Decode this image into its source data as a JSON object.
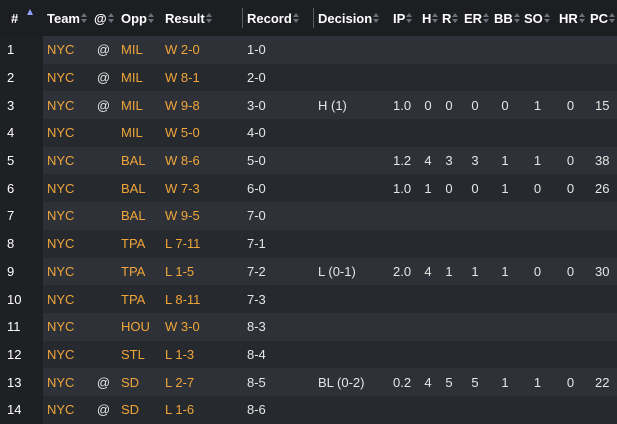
{
  "columns": [
    {
      "key": "idx",
      "label": "#"
    },
    {
      "key": "team",
      "label": "Team"
    },
    {
      "key": "at",
      "label": "@"
    },
    {
      "key": "opp",
      "label": "Opp"
    },
    {
      "key": "result",
      "label": "Result"
    },
    {
      "key": "record",
      "label": "Record"
    },
    {
      "key": "decision",
      "label": "Decision"
    },
    {
      "key": "ip",
      "label": "IP"
    },
    {
      "key": "h",
      "label": "H"
    },
    {
      "key": "r",
      "label": "R"
    },
    {
      "key": "er",
      "label": "ER"
    },
    {
      "key": "bb",
      "label": "BB"
    },
    {
      "key": "so",
      "label": "SO"
    },
    {
      "key": "hr",
      "label": "HR"
    },
    {
      "key": "pc",
      "label": "PC"
    }
  ],
  "rows": [
    {
      "idx": "1",
      "team": "NYC",
      "at": "@",
      "opp": "MIL",
      "result": "W 2-0",
      "record": "1-0",
      "decision": "",
      "ip": "",
      "h": "",
      "r": "",
      "er": "",
      "bb": "",
      "so": "",
      "hr": "",
      "pc": ""
    },
    {
      "idx": "2",
      "team": "NYC",
      "at": "@",
      "opp": "MIL",
      "result": "W 8-1",
      "record": "2-0",
      "decision": "",
      "ip": "",
      "h": "",
      "r": "",
      "er": "",
      "bb": "",
      "so": "",
      "hr": "",
      "pc": ""
    },
    {
      "idx": "3",
      "team": "NYC",
      "at": "@",
      "opp": "MIL",
      "result": "W 9-8",
      "record": "3-0",
      "decision": "H (1)",
      "ip": "1.0",
      "h": "0",
      "r": "0",
      "er": "0",
      "bb": "0",
      "so": "1",
      "hr": "0",
      "pc": "15"
    },
    {
      "idx": "4",
      "team": "NYC",
      "at": "",
      "opp": "MIL",
      "result": "W 5-0",
      "record": "4-0",
      "decision": "",
      "ip": "",
      "h": "",
      "r": "",
      "er": "",
      "bb": "",
      "so": "",
      "hr": "",
      "pc": ""
    },
    {
      "idx": "5",
      "team": "NYC",
      "at": "",
      "opp": "BAL",
      "result": "W 8-6",
      "record": "5-0",
      "decision": "",
      "ip": "1.2",
      "h": "4",
      "r": "3",
      "er": "3",
      "bb": "1",
      "so": "1",
      "hr": "0",
      "pc": "38"
    },
    {
      "idx": "6",
      "team": "NYC",
      "at": "",
      "opp": "BAL",
      "result": "W 7-3",
      "record": "6-0",
      "decision": "",
      "ip": "1.0",
      "h": "1",
      "r": "0",
      "er": "0",
      "bb": "1",
      "so": "0",
      "hr": "0",
      "pc": "26"
    },
    {
      "idx": "7",
      "team": "NYC",
      "at": "",
      "opp": "BAL",
      "result": "W 9-5",
      "record": "7-0",
      "decision": "",
      "ip": "",
      "h": "",
      "r": "",
      "er": "",
      "bb": "",
      "so": "",
      "hr": "",
      "pc": ""
    },
    {
      "idx": "8",
      "team": "NYC",
      "at": "",
      "opp": "TPA",
      "result": "L 7-11",
      "record": "7-1",
      "decision": "",
      "ip": "",
      "h": "",
      "r": "",
      "er": "",
      "bb": "",
      "so": "",
      "hr": "",
      "pc": ""
    },
    {
      "idx": "9",
      "team": "NYC",
      "at": "",
      "opp": "TPA",
      "result": "L 1-5",
      "record": "7-2",
      "decision": "L (0-1)",
      "ip": "2.0",
      "h": "4",
      "r": "1",
      "er": "1",
      "bb": "1",
      "so": "0",
      "hr": "0",
      "pc": "30"
    },
    {
      "idx": "10",
      "team": "NYC",
      "at": "",
      "opp": "TPA",
      "result": "L 8-11",
      "record": "7-3",
      "decision": "",
      "ip": "",
      "h": "",
      "r": "",
      "er": "",
      "bb": "",
      "so": "",
      "hr": "",
      "pc": ""
    },
    {
      "idx": "11",
      "team": "NYC",
      "at": "",
      "opp": "HOU",
      "result": "W 3-0",
      "record": "8-3",
      "decision": "",
      "ip": "",
      "h": "",
      "r": "",
      "er": "",
      "bb": "",
      "so": "",
      "hr": "",
      "pc": ""
    },
    {
      "idx": "12",
      "team": "NYC",
      "at": "",
      "opp": "STL",
      "result": "L 1-3",
      "record": "8-4",
      "decision": "",
      "ip": "",
      "h": "",
      "r": "",
      "er": "",
      "bb": "",
      "so": "",
      "hr": "",
      "pc": ""
    },
    {
      "idx": "13",
      "team": "NYC",
      "at": "@",
      "opp": "SD",
      "result": "L 2-7",
      "record": "8-5",
      "decision": "BL (0-2)",
      "ip": "0.2",
      "h": "4",
      "r": "5",
      "er": "5",
      "bb": "1",
      "so": "1",
      "hr": "0",
      "pc": "22"
    },
    {
      "idx": "14",
      "team": "NYC",
      "at": "@",
      "opp": "SD",
      "result": "L 1-6",
      "record": "8-6",
      "decision": "",
      "ip": "",
      "h": "",
      "r": "",
      "er": "",
      "bb": "",
      "so": "",
      "hr": "",
      "pc": ""
    }
  ],
  "colors": {
    "link": "#f0a63a",
    "header_bg": "#1c1e22",
    "row_odd": "#2e3137",
    "row_even": "#26292e",
    "sort_active": "#8ea4ff"
  }
}
